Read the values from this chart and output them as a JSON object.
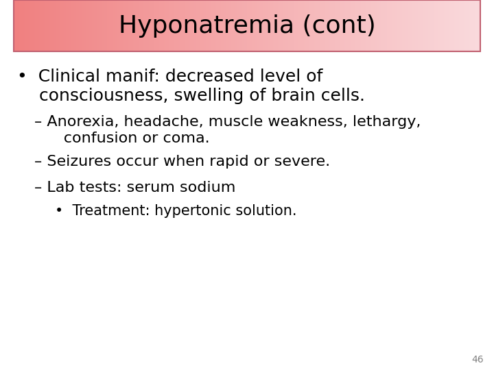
{
  "title": "Hyponatremia (cont)",
  "title_fontsize": 26,
  "background_color": "#ffffff",
  "title_box_left_color": "#f08080",
  "title_box_right_color": "#fadadd",
  "title_box_border": "#c06070",
  "slide_number": "46",
  "bullet1_line1": "•  Clinical manif: decreased level of",
  "bullet1_line2": "    consciousness, swelling of brain cells.",
  "sub1_line1": "– Anorexia, headache, muscle weakness, lethargy,",
  "sub1_line2": "      confusion or coma.",
  "sub2": "– Seizures occur when rapid or severe.",
  "sub3": "– Lab tests: serum sodium",
  "sub_bullet1": "•  Treatment: hypertonic solution.",
  "body_fontsize": 18,
  "sub_fontsize": 16,
  "sub_bullet_fontsize": 15,
  "text_color": "#000000",
  "slide_num_color": "#808080"
}
